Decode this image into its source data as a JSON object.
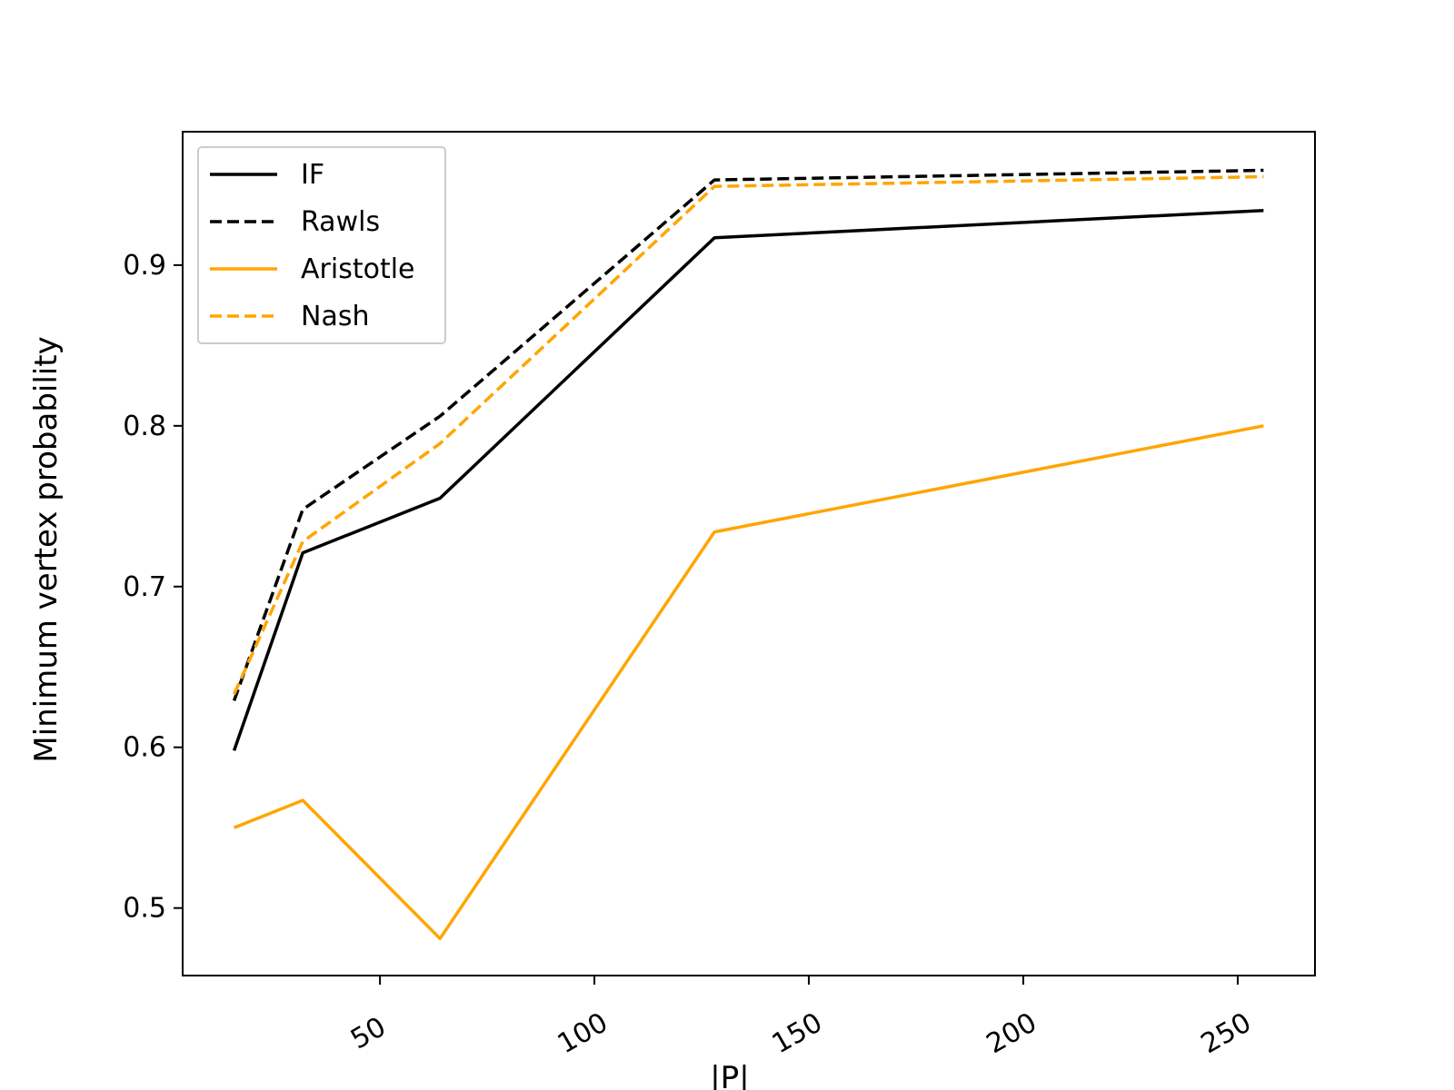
{
  "chart_data": {
    "type": "line",
    "title": "",
    "xlabel": "|P|",
    "ylabel": "Minimum vertex probability",
    "xlim": [
      4,
      268
    ],
    "ylim": [
      0.458,
      0.983
    ],
    "xticks": [
      50,
      100,
      150,
      200,
      250
    ],
    "xtick_labels": [
      "50",
      "100",
      "150",
      "200",
      "250"
    ],
    "yticks": [
      0.5,
      0.6,
      0.7,
      0.8,
      0.9
    ],
    "ytick_labels": [
      "0.5",
      "0.6",
      "0.7",
      "0.8",
      "0.9"
    ],
    "grid": false,
    "legend_position": "upper-left",
    "x": [
      16,
      32,
      64,
      128,
      256
    ],
    "series": [
      {
        "name": "IF",
        "color": "#000000",
        "dash": false,
        "values": [
          0.598,
          0.721,
          0.755,
          0.917,
          0.934
        ]
      },
      {
        "name": "Rawls",
        "color": "#000000",
        "dash": true,
        "values": [
          0.629,
          0.748,
          0.806,
          0.953,
          0.959
        ]
      },
      {
        "name": "Aristotle",
        "color": "#FFA500",
        "dash": false,
        "values": [
          0.55,
          0.567,
          0.481,
          0.734,
          0.8
        ]
      },
      {
        "name": "Nash",
        "color": "#FFA500",
        "dash": true,
        "values": [
          0.633,
          0.728,
          0.789,
          0.949,
          0.955
        ]
      }
    ]
  }
}
